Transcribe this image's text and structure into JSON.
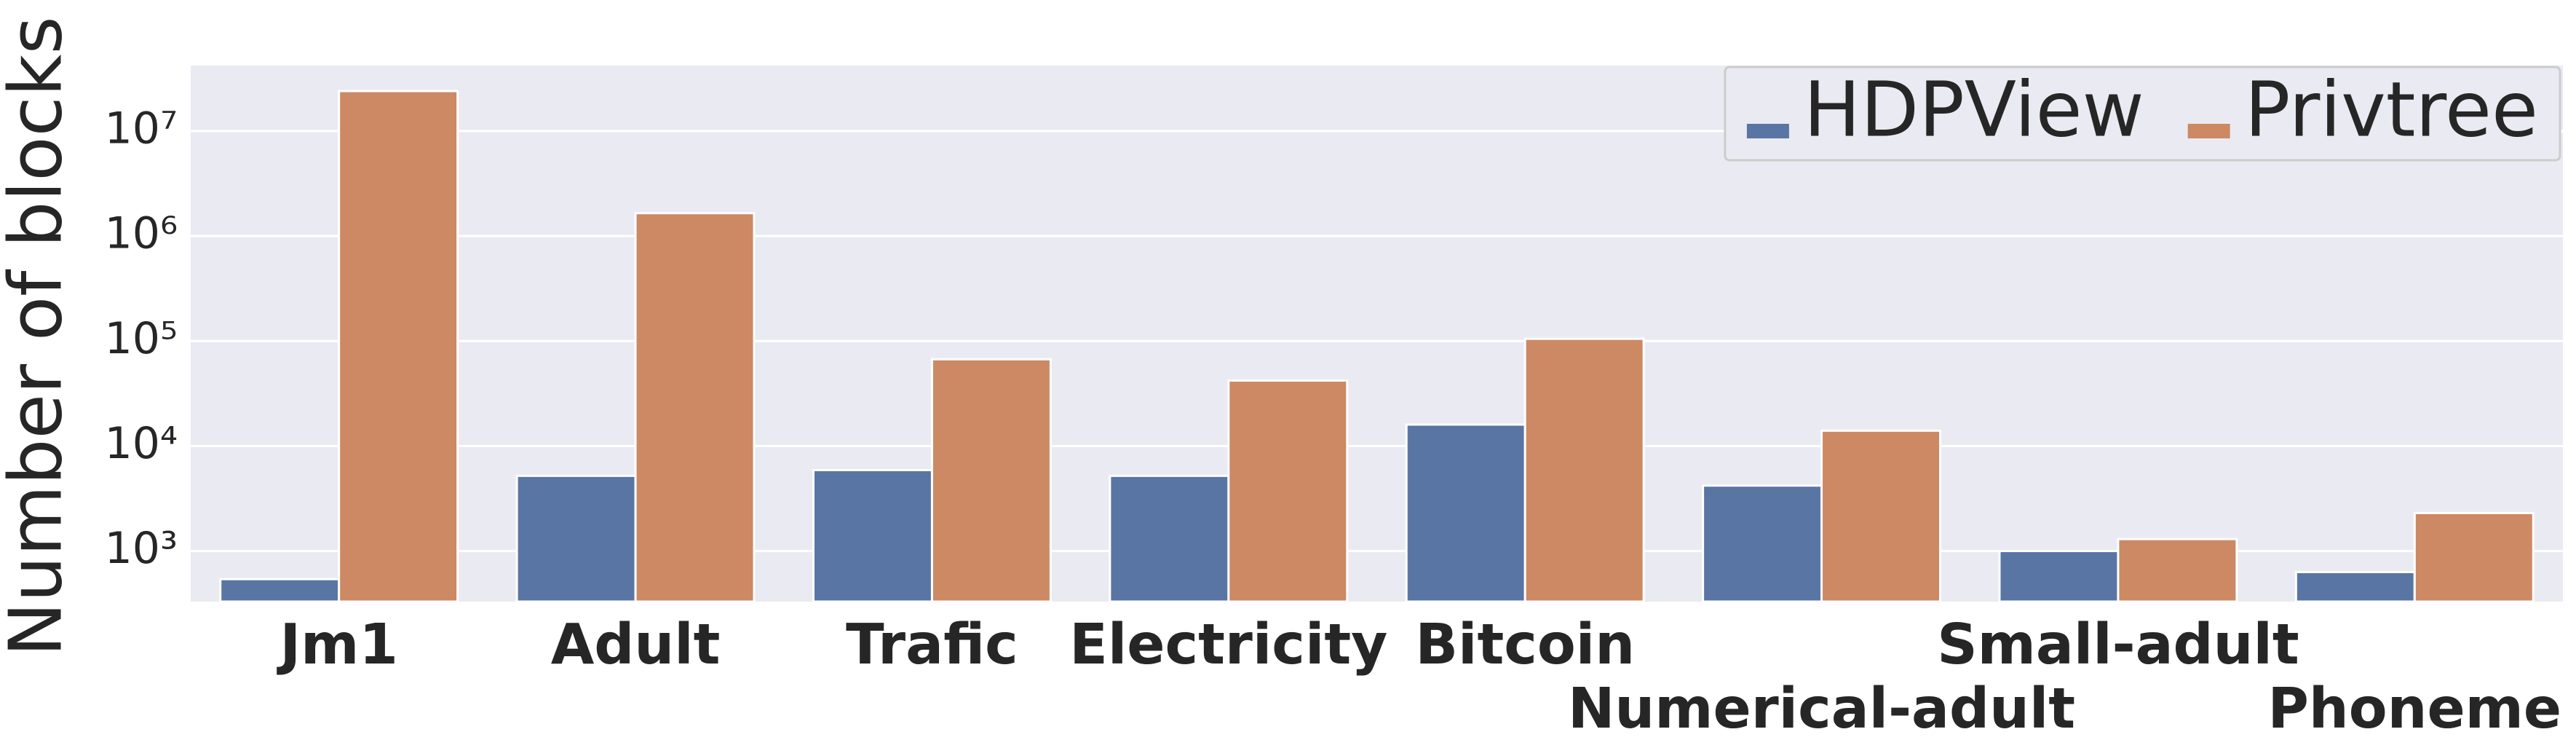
{
  "chart_data": {
    "type": "bar",
    "y_label": "Number of blocks",
    "categories": [
      "Jm1",
      "Adult",
      "Trafic",
      "Electricity",
      "Bitcoin",
      "Numerical-adult",
      "Small-adult",
      "Phoneme"
    ],
    "series": [
      {
        "name": "HDPView",
        "color": "#5975a4",
        "values": [
          540,
          5200,
          5900,
          5200,
          16000,
          4200,
          1000,
          630
        ]
      },
      {
        "name": "Privtree",
        "color": "#cc8963",
        "values": [
          24000000,
          1650000,
          67000,
          42000,
          105000,
          14000,
          1300,
          2300
        ]
      }
    ],
    "ylim": [
      330,
      42000000
    ],
    "yticks": [
      {
        "value": 1000,
        "label": "10³"
      },
      {
        "value": 10000,
        "label": "10⁴"
      },
      {
        "value": 100000,
        "label": "10⁵"
      },
      {
        "value": 1000000,
        "label": "10⁶"
      },
      {
        "value": 10000000,
        "label": "10⁷"
      }
    ],
    "log_scale": true,
    "grid": true,
    "legend": "upper right"
  }
}
